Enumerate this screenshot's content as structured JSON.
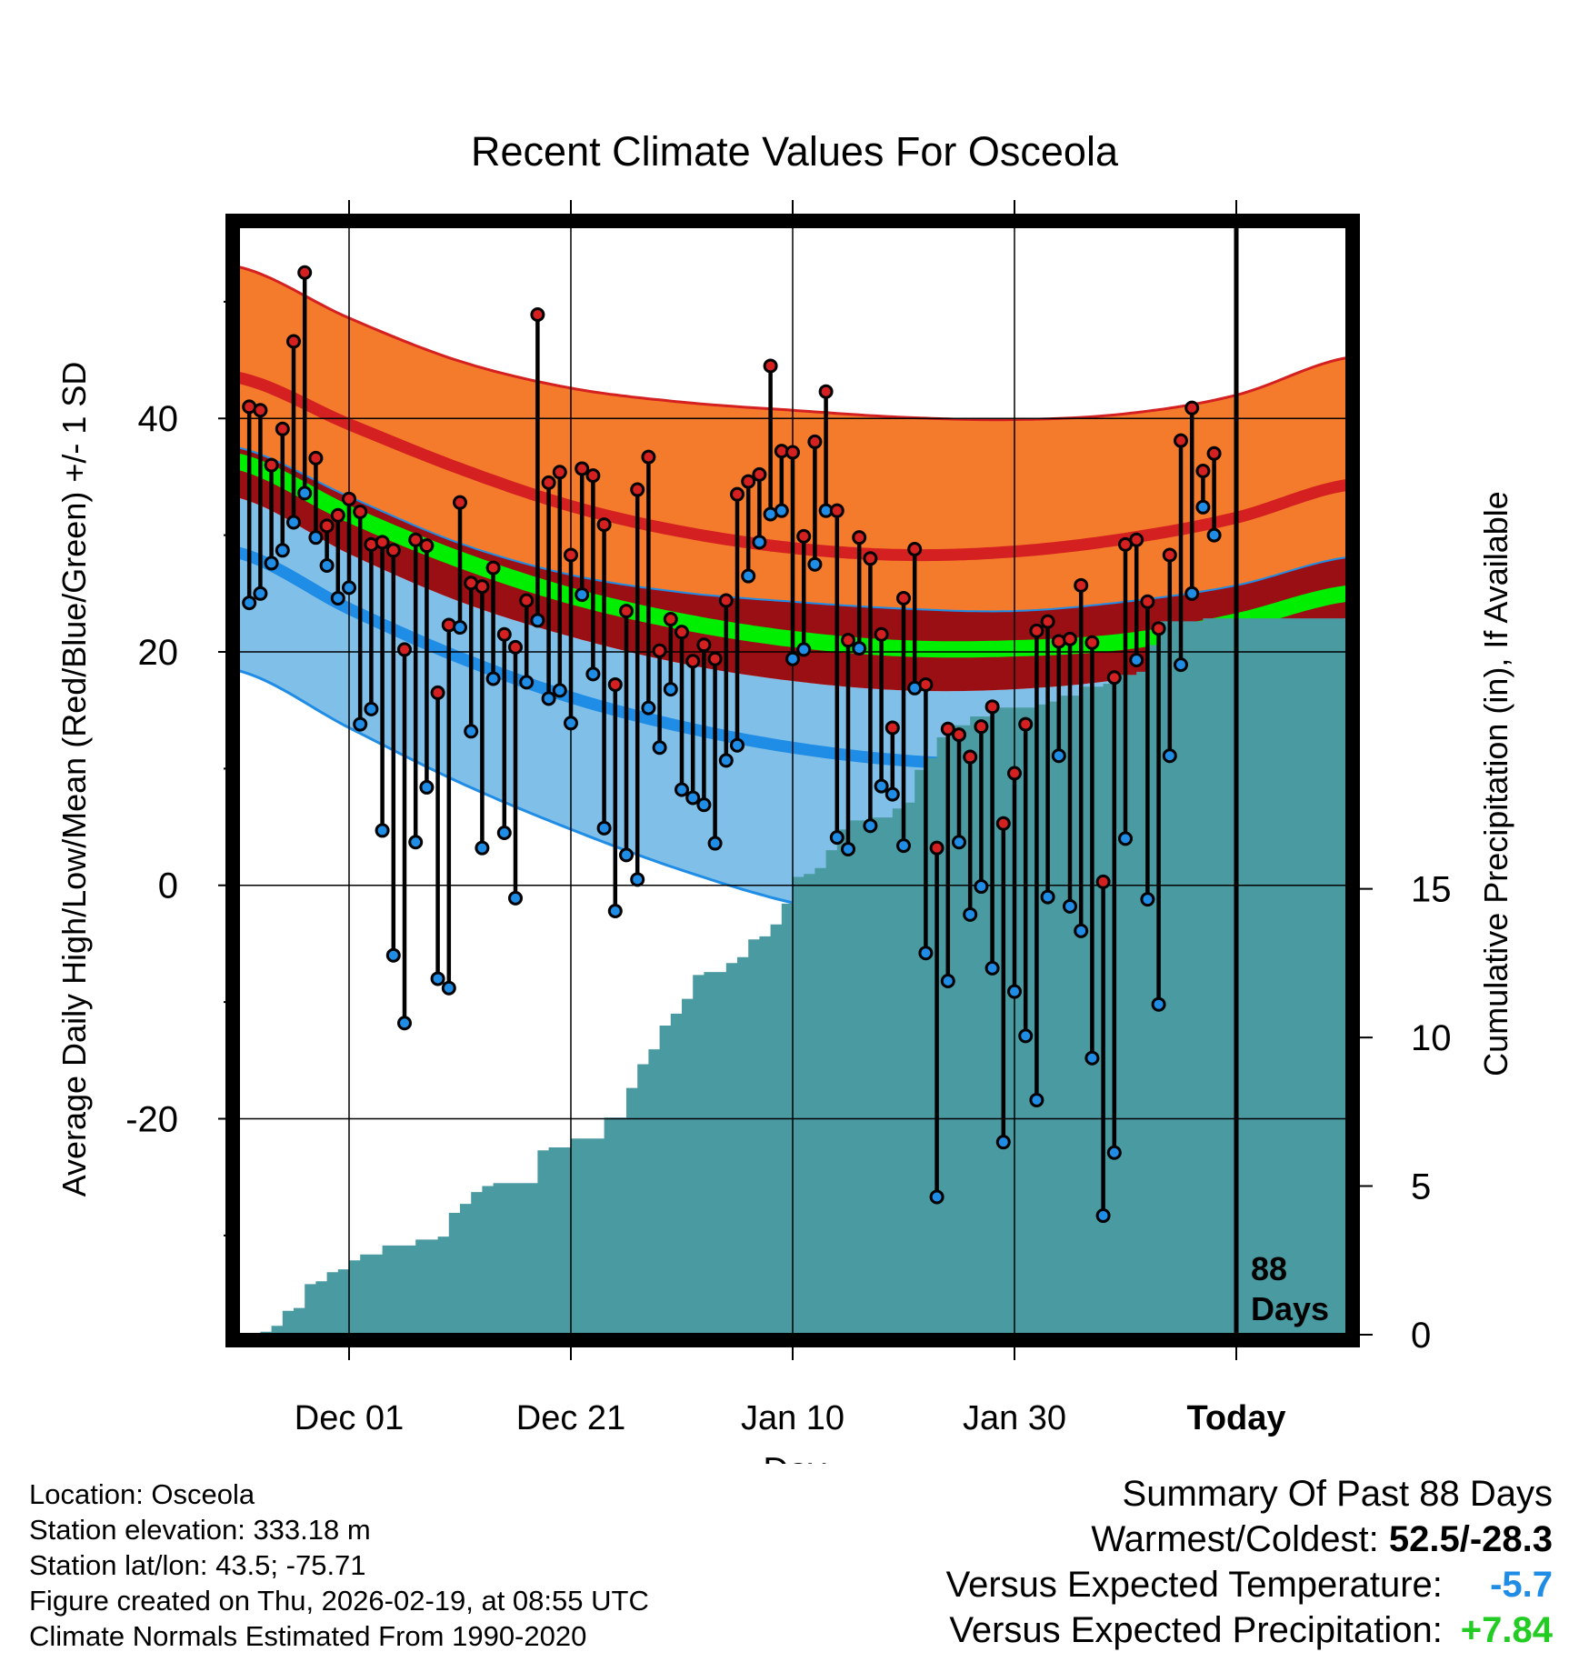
{
  "chart_data": {
    "type": "line",
    "title": "Recent Climate Values For Osceola",
    "xlabel": "Day",
    "ylabel": "Average Daily High/Low/Mean (Red/Blue/Green) +/- 1 SD",
    "y2label": "Cumulative Precipitation (in), If Available",
    "x_tick_labels": [
      "Dec 01",
      "Dec 21",
      "Jan 10",
      "Jan 30",
      "Today"
    ],
    "x_tick_days": [
      10,
      30,
      50,
      70,
      90
    ],
    "x_range_days": [
      0,
      100
    ],
    "y_ticks": [
      40,
      20,
      0,
      -20
    ],
    "ylim": [
      -38.5,
      57
    ],
    "y2_ticks": [
      15,
      10,
      5,
      0
    ],
    "y2lim": [
      0,
      37.5
    ],
    "period_label_number": "88",
    "period_label_unit": "Days",
    "grid": true,
    "legend": "none",
    "normals": {
      "days": [
        0,
        10,
        20,
        30,
        40,
        50,
        60,
        70,
        80,
        90,
        100
      ],
      "high_mean": [
        43.5,
        39.5,
        35.7,
        32.5,
        30.3,
        28.9,
        28.3,
        28.6,
        29.7,
        31.5,
        34.3
      ],
      "high_plus_sd": [
        53.0,
        48.6,
        44.9,
        42.6,
        41.4,
        40.7,
        40.1,
        39.9,
        40.4,
        42.0,
        45.2
      ],
      "high_minus_sd": [
        37.5,
        33.3,
        29.3,
        26.6,
        25.1,
        24.3,
        23.7,
        23.5,
        24.3,
        25.7,
        28.1
      ],
      "mean": [
        36.3,
        31.8,
        27.9,
        24.8,
        22.6,
        21.1,
        20.3,
        20.3,
        20.9,
        22.6,
        25.0
      ],
      "low_mean": [
        28.5,
        23.7,
        19.5,
        16.1,
        13.6,
        11.8,
        10.7,
        10.4,
        11.4,
        13.2,
        15.6
      ],
      "low_plus_sd": [
        33.2,
        28.4,
        24.3,
        21.3,
        19.0,
        17.5,
        16.7,
        16.8,
        17.7,
        19.7,
        22.9
      ],
      "low_minus_sd": [
        18.4,
        13.5,
        8.8,
        4.8,
        1.3,
        -1.5,
        -3.2,
        -3.0,
        -1.6,
        0.3,
        2.9
      ]
    },
    "series": [
      {
        "name": "Daily High",
        "color": "#d42020",
        "values": [
          41.0,
          40.7,
          36.0,
          39.1,
          46.6,
          52.5,
          36.6,
          30.8,
          31.7,
          33.1,
          32.0,
          29.2,
          29.4,
          28.7,
          20.2,
          29.6,
          29.1,
          16.5,
          22.3,
          32.8,
          25.9,
          25.6,
          27.2,
          21.5,
          20.4,
          24.4,
          48.9,
          34.5,
          35.4,
          28.3,
          35.7,
          35.1,
          30.9,
          17.2,
          23.5,
          33.9,
          36.7,
          20.1,
          22.8,
          21.7,
          19.2,
          20.6,
          19.4,
          24.4,
          33.5,
          34.6,
          35.2,
          44.5,
          37.2,
          37.1,
          29.9,
          38.0,
          42.3,
          32.1,
          21.0,
          29.8,
          28.0,
          21.5,
          13.5,
          24.6,
          28.8,
          17.2,
          3.2,
          13.4,
          12.9,
          11.0,
          13.6,
          15.3,
          5.3,
          9.6,
          13.8,
          21.8,
          22.6,
          20.9,
          21.1,
          25.7,
          20.8,
          0.3,
          17.8,
          29.2,
          29.6,
          24.3,
          22.0,
          28.3,
          38.1,
          40.9,
          35.5,
          37.0
        ]
      },
      {
        "name": "Daily Low",
        "color": "#1f8ce6",
        "values": [
          24.2,
          25.0,
          27.6,
          28.7,
          31.1,
          33.6,
          29.8,
          27.4,
          24.6,
          25.5,
          13.8,
          15.1,
          4.7,
          -6.0,
          -11.8,
          3.7,
          8.4,
          -8.0,
          -8.8,
          22.1,
          13.2,
          3.2,
          17.7,
          4.5,
          -1.1,
          17.4,
          22.7,
          16.0,
          16.7,
          13.9,
          24.9,
          18.1,
          4.9,
          -2.2,
          2.6,
          0.5,
          15.2,
          11.8,
          16.8,
          8.2,
          7.5,
          6.9,
          3.6,
          10.7,
          12.0,
          26.5,
          29.4,
          31.8,
          32.1,
          19.4,
          20.2,
          27.5,
          32.1,
          4.1,
          3.1,
          20.3,
          5.1,
          8.5,
          7.8,
          3.4,
          16.9,
          -5.8,
          -26.7,
          -8.2,
          3.7,
          -2.5,
          -0.1,
          -7.1,
          -22.0,
          -9.1,
          -12.9,
          -18.4,
          -1.0,
          11.1,
          -1.8,
          -3.9,
          -14.8,
          -28.3,
          -22.9,
          4.0,
          19.3,
          -1.2,
          -10.2,
          11.1,
          18.9,
          25.0,
          32.4,
          30.0
        ]
      }
    ],
    "precip_cumulative": {
      "days": [
        1,
        2,
        3,
        4,
        5,
        6,
        7,
        8,
        9,
        10,
        11,
        12,
        13,
        14,
        15,
        16,
        17,
        18,
        19,
        20,
        21,
        22,
        23,
        24,
        25,
        26,
        27,
        28,
        29,
        30,
        31,
        32,
        33,
        34,
        35,
        36,
        37,
        38,
        39,
        40,
        41,
        42,
        43,
        44,
        45,
        46,
        47,
        48,
        49,
        50,
        51,
        52,
        53,
        54,
        55,
        56,
        57,
        58,
        59,
        60,
        61,
        62,
        63,
        64,
        65,
        66,
        67,
        68,
        69,
        70,
        71,
        72,
        73,
        74,
        75,
        76,
        77,
        78,
        79,
        80,
        81,
        82,
        83,
        84,
        85,
        86,
        87,
        88,
        89,
        90,
        91,
        92,
        93,
        94,
        95,
        96,
        97,
        98,
        99,
        100
      ],
      "values": [
        0.0,
        0.0,
        0.1,
        0.3,
        0.8,
        0.9,
        1.7,
        1.8,
        2.1,
        2.2,
        2.5,
        2.7,
        2.7,
        3.0,
        3.0,
        3.0,
        3.2,
        3.2,
        3.3,
        4.1,
        4.4,
        4.8,
        5.0,
        5.1,
        5.1,
        5.1,
        5.1,
        6.2,
        6.3,
        6.3,
        6.6,
        6.6,
        6.6,
        7.3,
        7.3,
        8.3,
        9.1,
        9.6,
        10.4,
        10.8,
        11.3,
        12.1,
        12.2,
        12.2,
        12.5,
        12.7,
        13.3,
        13.4,
        13.8,
        14.5,
        15.4,
        15.5,
        15.7,
        16.3,
        17.0,
        17.3,
        17.3,
        17.4,
        17.4,
        17.7,
        17.9,
        19.0,
        19.4,
        20.1,
        20.5,
        20.5,
        20.8,
        20.8,
        21.1,
        21.1,
        21.1,
        21.1,
        21.2,
        21.3,
        21.5,
        21.5,
        21.8,
        21.8,
        21.9,
        22.2,
        22.2,
        22.3,
        23.2,
        24.0,
        24.0,
        24.0,
        24.0,
        24.1,
        24.1,
        24.1,
        24.1,
        24.1,
        24.1,
        24.1,
        24.1,
        24.1,
        24.1,
        24.1,
        24.1,
        24.1
      ]
    }
  },
  "colors": {
    "high_band": "#f47a2c",
    "high_line": "#d42020",
    "mean_band": "#990f13",
    "mean_line": "#00ee00",
    "low_band": "#80bfe8",
    "low_line": "#1f8ce6",
    "precip_fill": "#4a9aa2"
  },
  "info": {
    "location": "Location: Osceola",
    "elevation": "Station elevation: 333.18 m",
    "latlon": "Station lat/lon: 43.5; -75.71",
    "created": "Figure created on Thu, 2026-02-19, at 08:55 UTC",
    "normals_period": "Climate Normals Estimated From 1990-2020"
  },
  "summary": {
    "heading": "Summary Of Past 88 Days",
    "warmest_coldest_label": "Warmest/Coldest:",
    "warmest_coldest_value": "52.5/-28.3",
    "temp_label": "Versus Expected Temperature:",
    "temp_value": "-5.7",
    "temp_color": "#1f8ce6",
    "precip_label": "Versus Expected Precipitation:",
    "precip_value": "+7.84",
    "precip_color": "#22cc22"
  }
}
